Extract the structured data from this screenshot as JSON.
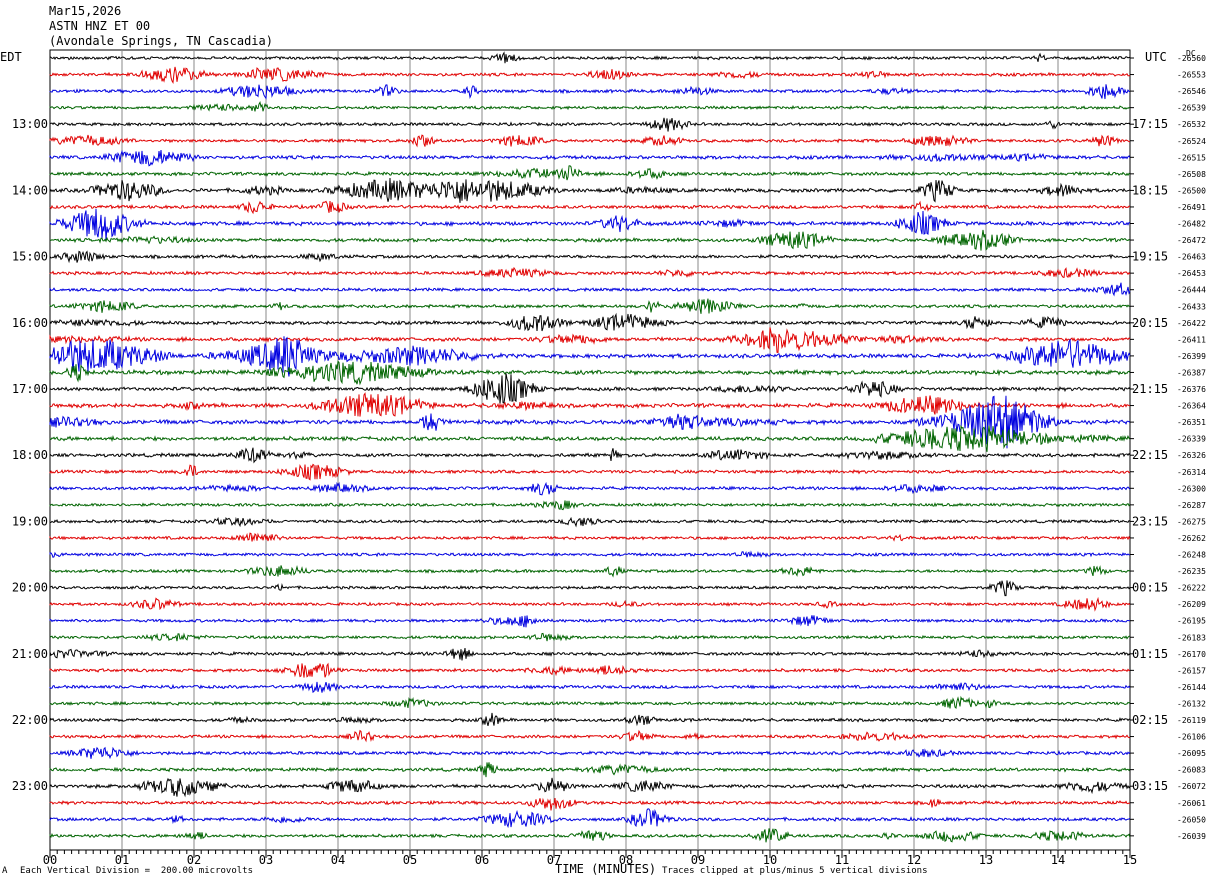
{
  "header": {
    "date": "Mar15,2026",
    "station": "ASTN HNZ ET 00",
    "location": "(Avondale Springs, TN Cascadia)"
  },
  "left_timezone": "EDT",
  "right_timezone": "UTC",
  "dc_label": "DC",
  "footer": {
    "scale_note": "Each Vertical Division =  200.00 microvolts",
    "clip_note": "Traces clipped at plus/minus 5 vertical divisions",
    "corner_mark": "A"
  },
  "colors": [
    "#000000",
    "#e00000",
    "#0000e0",
    "#006400"
  ],
  "chart_data": {
    "type": "line",
    "title": "",
    "xlabel": "TIME (MINUTES)",
    "ylabel": "",
    "xlim": [
      0,
      15
    ],
    "x_ticks": [
      "00",
      "01",
      "02",
      "03",
      "04",
      "05",
      "06",
      "07",
      "08",
      "09",
      "10",
      "11",
      "12",
      "13",
      "14",
      "15"
    ],
    "left_hour_labels": [
      "13:00",
      "14:00",
      "15:00",
      "16:00",
      "17:00",
      "18:00",
      "19:00",
      "20:00",
      "21:00",
      "22:00",
      "23:00"
    ],
    "right_hour_labels": [
      "17:15",
      "18:15",
      "19:15",
      "20:15",
      "21:15",
      "22:15",
      "23:15",
      "00:15",
      "01:15",
      "02:15",
      "03:15"
    ],
    "dc_offsets": [
      "-26560",
      "-26553",
      "-26546",
      "-26539",
      "-26532",
      "-26524",
      "-26515",
      "-26508",
      "-26500",
      "-26491",
      "-26482",
      "-26472",
      "-26463",
      "-26453",
      "-26444",
      "-26433",
      "-26422",
      "-26411",
      "-26399",
      "-26387",
      "-26376",
      "-26364",
      "-26351",
      "-26339",
      "-26326",
      "-26314",
      "-26300",
      "-26287",
      "-26275",
      "-26262",
      "-26248",
      "-26235",
      "-26222",
      "-26209",
      "-26195",
      "-26183",
      "-26170",
      "-26157",
      "-26144",
      "-26132",
      "-26119",
      "-26106",
      "-26095",
      "-26083",
      "-26072",
      "-26061",
      "-26050",
      "-26039"
    ],
    "trace_activity": [
      1.0,
      1.1,
      1.2,
      0.9,
      1.0,
      1.1,
      1.6,
      1.4,
      1.8,
      1.3,
      2.0,
      1.5,
      1.2,
      1.1,
      1.0,
      1.1,
      1.4,
      1.8,
      2.2,
      2.4,
      1.6,
      2.3,
      2.4,
      2.0,
      1.5,
      1.2,
      1.1,
      0.9,
      0.9,
      0.9,
      0.9,
      0.9,
      0.8,
      0.8,
      0.9,
      0.9,
      1.2,
      1.1,
      1.1,
      1.0,
      1.1,
      1.0,
      1.2,
      1.3,
      1.5,
      1.2,
      1.3,
      1.1
    ]
  }
}
